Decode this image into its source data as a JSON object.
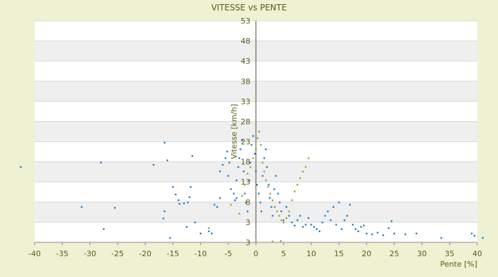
{
  "chart_data": {
    "type": "scatter",
    "title": "VITESSE vs PENTE",
    "xlabel": "Pente [%]",
    "ylabel": "Vitesse [km/h]",
    "xlim": [
      -40,
      40
    ],
    "ylim": [
      3,
      53
    ],
    "x_ticks": [
      "-40",
      "-35",
      "-30",
      "-25",
      "-20",
      "-15",
      "-10",
      "-5",
      "0",
      "5",
      "10",
      "15",
      "20",
      "25",
      "30",
      "35",
      "40"
    ],
    "y_ticks": [
      "3",
      "3",
      "8",
      "13",
      "18",
      "23",
      "28",
      "33",
      "38",
      "43",
      "48",
      "53"
    ],
    "grid": true,
    "legend": "none",
    "colors": {
      "background": "#eef2d2",
      "plot_light": "#ffffff",
      "plot_band": "#efefef",
      "blue_points": "#1e7fd0",
      "olive_points": "#a8a030",
      "axis": "#4a4a20"
    },
    "series": [
      {
        "color": "blue",
        "points": [
          [
            -42.5,
            20
          ],
          [
            -31.5,
            11
          ],
          [
            -27.5,
            6
          ],
          [
            -28.0,
            21
          ],
          [
            -25.5,
            10.8
          ],
          [
            -18.5,
            20.5
          ],
          [
            -16.5,
            25.5
          ],
          [
            -16.0,
            21.5
          ],
          [
            -16.5,
            10
          ],
          [
            -16.7,
            8.4
          ],
          [
            -15.5,
            4
          ],
          [
            -15,
            15.5
          ],
          [
            -14.5,
            13.8
          ],
          [
            -14.0,
            12.5
          ],
          [
            -13.8,
            11.7
          ],
          [
            -13,
            11.8
          ],
          [
            -12.5,
            6.5
          ],
          [
            -12.3,
            12
          ],
          [
            -12.0,
            13.2
          ],
          [
            -11.8,
            15.5
          ],
          [
            -11.5,
            22.5
          ],
          [
            -11.0,
            7.5
          ],
          [
            -10.0,
            5
          ],
          [
            -8.5,
            5.5
          ],
          [
            -8.0,
            5
          ],
          [
            -7.5,
            11.5
          ],
          [
            -7,
            11
          ],
          [
            -6.5,
            19
          ],
          [
            -6.5,
            13
          ],
          [
            -6,
            20.5
          ],
          [
            -5.5,
            22
          ],
          [
            -5.2,
            23.5
          ],
          [
            -5,
            18
          ],
          [
            -4.8,
            21
          ],
          [
            -4.5,
            15
          ],
          [
            -4,
            14
          ],
          [
            -3.8,
            12.5
          ],
          [
            -3.5,
            13
          ],
          [
            -3.5,
            17
          ],
          [
            -3.2,
            20
          ],
          [
            -3,
            22
          ],
          [
            -2.8,
            24
          ],
          [
            -2.5,
            26
          ],
          [
            -2.2,
            19
          ],
          [
            -2.0,
            14
          ],
          [
            -1.8,
            12
          ],
          [
            -1.5,
            10
          ],
          [
            -1.2,
            17
          ],
          [
            -1.0,
            21
          ],
          [
            -0.8,
            25
          ],
          [
            -0.5,
            27
          ],
          [
            -0.2,
            23
          ],
          [
            0,
            19
          ],
          [
            0.2,
            16
          ],
          [
            0.5,
            14
          ],
          [
            0.8,
            12
          ],
          [
            1.0,
            10
          ],
          [
            1.2,
            18
          ],
          [
            1.5,
            22
          ],
          [
            1.8,
            24
          ],
          [
            2.0,
            20
          ],
          [
            2.3,
            16
          ],
          [
            2.5,
            13
          ],
          [
            2.8,
            11
          ],
          [
            3.0,
            9
          ],
          [
            3.3,
            15
          ],
          [
            3.6,
            18
          ],
          [
            4.0,
            14
          ],
          [
            4.3,
            12
          ],
          [
            4.6,
            10
          ],
          [
            5.0,
            8
          ],
          [
            5.5,
            11
          ],
          [
            6.0,
            9
          ],
          [
            6.5,
            7.5
          ],
          [
            7.0,
            6.8
          ],
          [
            7.5,
            8
          ],
          [
            8.0,
            9
          ],
          [
            8.5,
            6.5
          ],
          [
            9.0,
            7
          ],
          [
            9.5,
            8.5
          ],
          [
            10,
            7
          ],
          [
            10.5,
            6.5
          ],
          [
            11,
            6
          ],
          [
            11.5,
            5.5
          ],
          [
            12,
            7.5
          ],
          [
            12.5,
            9
          ],
          [
            13,
            10
          ],
          [
            13.5,
            8
          ],
          [
            14,
            11
          ],
          [
            14.5,
            7
          ],
          [
            15,
            12
          ],
          [
            15.5,
            6
          ],
          [
            16,
            8
          ],
          [
            16.5,
            9
          ],
          [
            17,
            11.5
          ],
          [
            17.5,
            7
          ],
          [
            18,
            6
          ],
          [
            18.5,
            5.5
          ],
          [
            19,
            6.5
          ],
          [
            19.5,
            6.8
          ],
          [
            20,
            5
          ],
          [
            21,
            4.8
          ],
          [
            22,
            5.2
          ],
          [
            23,
            4.6
          ],
          [
            24,
            6.2
          ],
          [
            24.5,
            7.8
          ],
          [
            25,
            5
          ],
          [
            27,
            4.8
          ],
          [
            29,
            5
          ],
          [
            33.5,
            4
          ],
          [
            39,
            5
          ],
          [
            39.5,
            4.5
          ],
          [
            41,
            4
          ]
        ]
      },
      {
        "color": "olive",
        "points": [
          [
            -8.5,
            6.2
          ],
          [
            -4.5,
            11.5
          ],
          [
            -3,
            9.5
          ],
          [
            -2.5,
            13.5
          ],
          [
            -2,
            16
          ],
          [
            -1.5,
            18.5
          ],
          [
            -1,
            20
          ],
          [
            -0.5,
            22
          ],
          [
            0,
            24
          ],
          [
            0.3,
            26.5
          ],
          [
            0.6,
            28
          ],
          [
            0.9,
            25
          ],
          [
            1.2,
            21
          ],
          [
            1.5,
            19
          ],
          [
            1.8,
            17
          ],
          [
            2.2,
            15.5
          ],
          [
            2.6,
            14
          ],
          [
            3,
            12.5
          ],
          [
            3.4,
            11
          ],
          [
            3.8,
            10
          ],
          [
            4.2,
            9
          ],
          [
            4.6,
            8
          ],
          [
            5.0,
            7.5
          ],
          [
            5.5,
            8.5
          ],
          [
            6,
            10
          ],
          [
            6.5,
            12.5
          ],
          [
            7,
            14.5
          ],
          [
            7.5,
            16
          ],
          [
            8,
            17.5
          ],
          [
            8.5,
            19
          ],
          [
            9,
            20
          ],
          [
            9.5,
            22
          ],
          [
            3,
            3.2
          ],
          [
            4.5,
            3.3
          ]
        ]
      }
    ]
  }
}
